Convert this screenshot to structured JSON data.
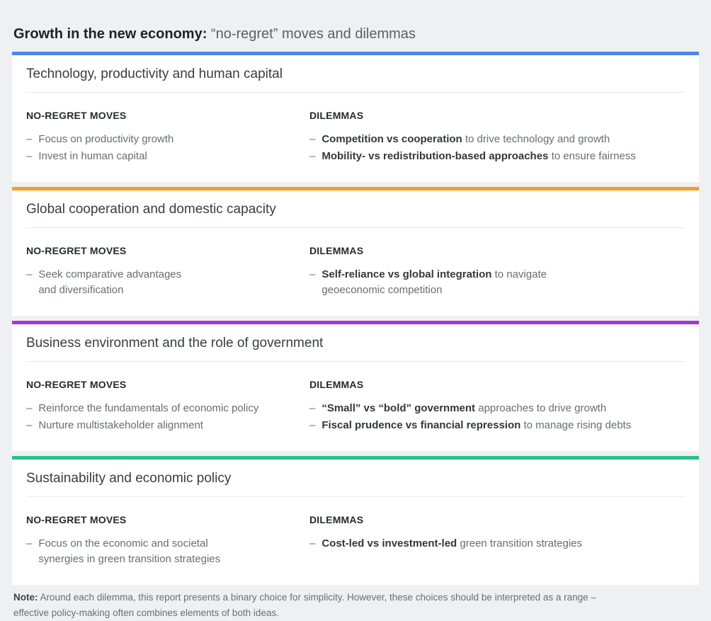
{
  "page": {
    "title_bold": "Growth in the new economy:",
    "title_rest": " “no-regret” moves and dilemmas"
  },
  "labels": {
    "no_regret": "NO-REGRET MOVES",
    "dilemmas": "DILEMMAS",
    "bullet": "–"
  },
  "sections": [
    {
      "title": "Technology, productivity and human capital",
      "accent": "#4e86e8",
      "no_regret_moves": [
        "Focus on productivity growth",
        "Invest in human capital"
      ],
      "dilemmas": [
        {
          "bold": "Competition vs cooperation",
          "rest": " to drive technology and growth"
        },
        {
          "bold": "Mobility- vs redistribution-based approaches",
          "rest": " to ensure fairness"
        }
      ]
    },
    {
      "title": "Global cooperation and domestic capacity",
      "accent": "#f69f1d",
      "no_regret_moves": [
        "Seek comparative advantages\nand diversification"
      ],
      "dilemmas": [
        {
          "bold": "Self-reliance vs global integration",
          "rest": " to navigate\ngeoeconomic competition"
        }
      ]
    },
    {
      "title": "Business environment and the role of government",
      "accent": "#a337d3",
      "no_regret_moves": [
        "Reinforce the fundamentals of economic policy",
        "Nurture multistakeholder alignment"
      ],
      "dilemmas": [
        {
          "bold": "“Small” vs “bold” government",
          "rest": " approaches to drive growth"
        },
        {
          "bold": "Fiscal prudence vs financial repression",
          "rest": " to manage rising debts"
        }
      ]
    },
    {
      "title": "Sustainability and economic policy",
      "accent": "#27c281",
      "no_regret_moves": [
        "Focus on the economic and societal\nsynergies in green transition strategies"
      ],
      "dilemmas": [
        {
          "bold": "Cost-led vs investment-led",
          "rest": " green transition strategies"
        }
      ]
    }
  ],
  "note": {
    "label": "Note:",
    "text": " Around each dilemma, this report presents a binary choice for simplicity. However, these choices should be interpreted as a range –\neffective policy-making often combines elements of both ideas."
  }
}
